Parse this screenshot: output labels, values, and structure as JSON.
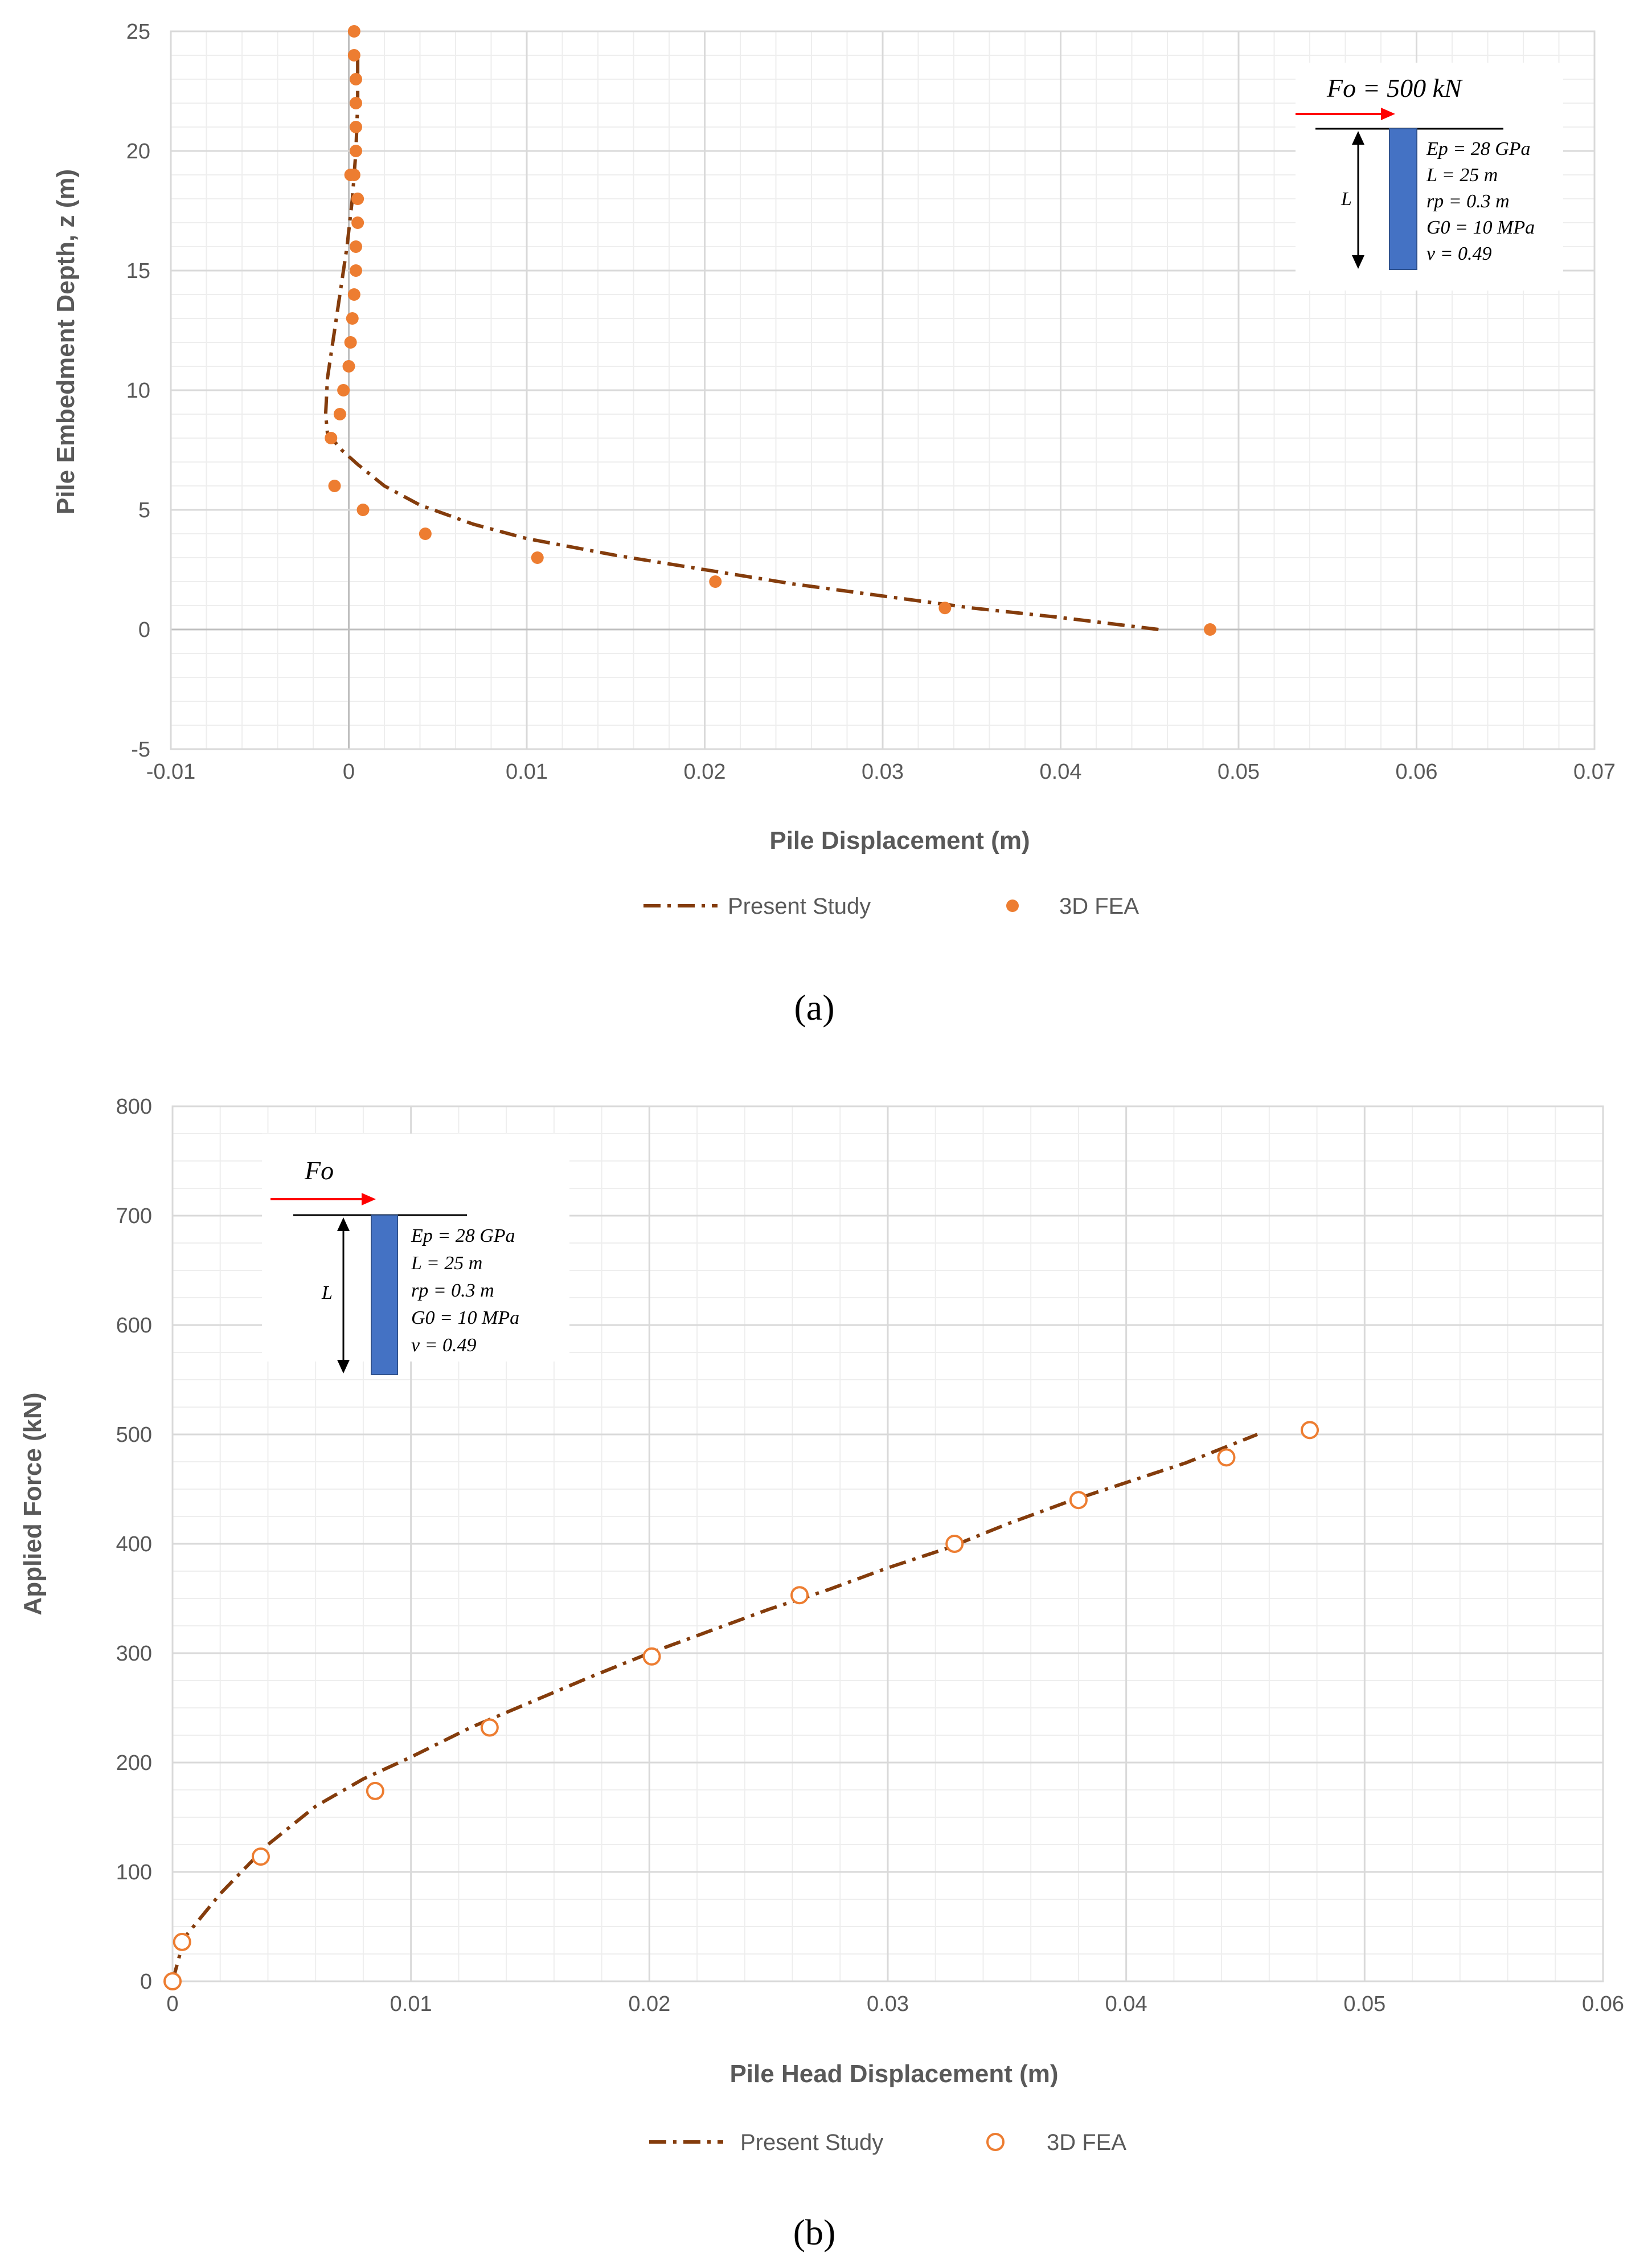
{
  "colors": {
    "present_study": "#843C0C",
    "fea": "#ED7D31",
    "pile": "#4472C4",
    "force_arrow": "#FF0000",
    "grid_major": "#D9D9D9",
    "grid_minor": "#EEEEEE",
    "zero_axis": "#BFBFBF",
    "text": "#595959"
  },
  "chart_data": [
    {
      "type": "line+scatter",
      "caption": "(a)",
      "xlabel": "Pile Displacement (m)",
      "ylabel": "Pile Embedment Depth, z (m)",
      "xlim": [
        -0.01,
        0.07
      ],
      "ylim": [
        -5,
        25
      ],
      "x_ticks": [
        -0.01,
        0,
        0.01,
        0.02,
        0.03,
        0.04,
        0.05,
        0.06,
        0.07
      ],
      "x_tick_labels": [
        "-0.01",
        "0",
        "0.01",
        "0.02",
        "0.03",
        "0.04",
        "0.05",
        "0.06",
        "0.07"
      ],
      "y_ticks": [
        -5,
        0,
        5,
        10,
        15,
        20,
        25
      ],
      "y_tick_labels": [
        "-5",
        "0",
        "5",
        "10",
        "15",
        "20",
        "25"
      ],
      "legend": {
        "present_study": "Present Study",
        "fea": "3D FEA"
      },
      "inset": {
        "force": "Fo = 500 kN",
        "length_label": "L",
        "params": [
          "Ep = 28 GPa",
          "L =  25 m",
          "rp = 0.3 m",
          "G0 = 10 MPa",
          "v = 0.49"
        ]
      },
      "series": [
        {
          "name": "Present Study",
          "style": "dash-dot",
          "x": [
            0.0455,
            0.04,
            0.035,
            0.03,
            0.025,
            0.02,
            0.015,
            0.01,
            0.007,
            0.004,
            0.002,
            0.0005,
            -0.0004,
            -0.0012,
            -0.0013,
            -0.0012,
            -0.0009,
            -0.0005,
            -0.0001,
            0.0002,
            0.0004,
            0.0005,
            0.0005
          ],
          "y": [
            0,
            0.5,
            0.9,
            1.4,
            1.9,
            2.5,
            3.1,
            3.8,
            4.4,
            5.2,
            6.0,
            6.9,
            7.5,
            8.2,
            9.0,
            10.5,
            12.0,
            14.0,
            16.0,
            18.0,
            20.0,
            22.0,
            24.0
          ]
        },
        {
          "name": "3D FEA",
          "style": "marker-filled",
          "x": [
            0.0484,
            0.0335,
            0.0206,
            0.0106,
            0.0043,
            0.0008,
            -0.0008,
            -0.001,
            -0.0005,
            -0.0003,
            0.0,
            0.0001,
            0.0002,
            0.0003,
            0.0004,
            0.0004,
            0.0005,
            0.0005,
            0.0003,
            0.0001,
            0.0004,
            0.0004,
            0.0004,
            0.0004,
            0.0003,
            0.0003
          ],
          "y": [
            0,
            0.9,
            2.0,
            3.0,
            4.0,
            5.0,
            6.0,
            8.0,
            9.0,
            10.0,
            11.0,
            12.0,
            13.0,
            14.0,
            15.0,
            16.0,
            17.0,
            18.0,
            19.0,
            19.0,
            20.0,
            21.0,
            22.0,
            23.0,
            24.0,
            25.0
          ]
        }
      ]
    },
    {
      "type": "line+scatter",
      "caption": "(b)",
      "xlabel": "Pile Head Displacement (m)",
      "ylabel": "Applied Force (kN)",
      "xlim": [
        0,
        0.06
      ],
      "ylim": [
        0,
        800
      ],
      "x_ticks": [
        0,
        0.01,
        0.02,
        0.03,
        0.04,
        0.05,
        0.06
      ],
      "x_tick_labels": [
        "0",
        "0.01",
        "0.02",
        "0.03",
        "0.04",
        "0.05",
        "0.06"
      ],
      "y_ticks": [
        0,
        100,
        200,
        300,
        400,
        500,
        600,
        700,
        800
      ],
      "y_tick_labels": [
        "0",
        "100",
        "200",
        "300",
        "400",
        "500",
        "600",
        "700",
        "800"
      ],
      "legend": {
        "present_study": "Present Study",
        "fea": "3D FEA"
      },
      "inset": {
        "force": "Fo",
        "length_label": "L",
        "params": [
          "Ep = 28 GPa",
          "L =  25 m",
          "rp = 0.3 m",
          "G0 = 10 MPa",
          "v = 0.49"
        ]
      },
      "series": [
        {
          "name": "Present Study",
          "style": "dash-dot",
          "x": [
            0,
            0.0005,
            0.002,
            0.004,
            0.006,
            0.008,
            0.01,
            0.0125,
            0.015,
            0.0175,
            0.02,
            0.0225,
            0.025,
            0.0275,
            0.03,
            0.0325,
            0.035,
            0.0375,
            0.04,
            0.0425,
            0.0455
          ],
          "y": [
            0,
            40,
            80,
            125,
            160,
            185,
            205,
            232,
            255,
            278,
            300,
            320,
            340,
            358,
            378,
            396,
            418,
            438,
            456,
            474,
            500
          ]
        },
        {
          "name": "3D FEA",
          "style": "marker-hollow",
          "x": [
            0.0,
            0.0004,
            0.0037,
            0.0085,
            0.0133,
            0.0201,
            0.0263,
            0.0328,
            0.038,
            0.0442,
            0.0477
          ],
          "y": [
            0,
            36,
            114,
            174,
            232,
            297,
            353,
            400,
            440,
            479,
            504
          ]
        }
      ]
    }
  ]
}
